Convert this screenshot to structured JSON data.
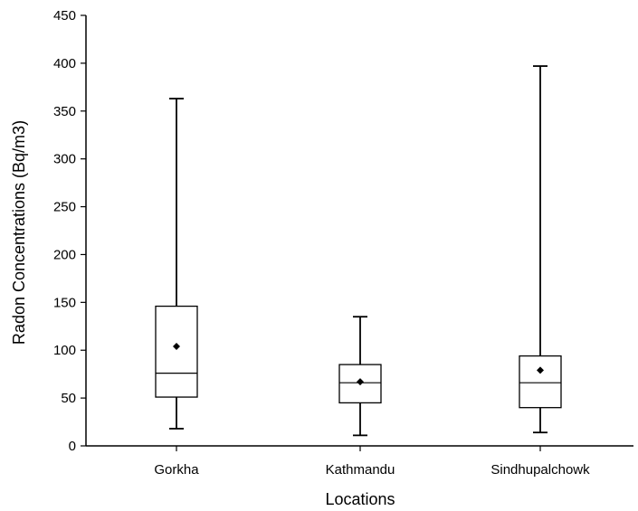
{
  "chart_data": {
    "type": "box",
    "xlabel": "Locations",
    "ylabel": "Radon Concentrations (Bq/m3)",
    "ylim": [
      0,
      450
    ],
    "yticks": [
      0,
      50,
      100,
      150,
      200,
      250,
      300,
      350,
      400,
      450
    ],
    "categories": [
      "Gorkha",
      "Kathmandu",
      "Sindhupalchowk"
    ],
    "boxes": [
      {
        "category": "Gorkha",
        "min": 18,
        "q1": 51,
        "median": 76,
        "q3": 146,
        "max": 363,
        "mean": 104
      },
      {
        "category": "Kathmandu",
        "min": 11,
        "q1": 45,
        "median": 66,
        "q3": 85,
        "max": 135,
        "mean": 67
      },
      {
        "category": "Sindhupalchowk",
        "min": 14,
        "q1": 40,
        "median": 66,
        "q3": 94,
        "max": 397,
        "mean": 79
      }
    ],
    "grid": false,
    "colors": {
      "stroke": "#000000",
      "box_fill": "#ffffff",
      "mean_marker": "#000000"
    }
  }
}
